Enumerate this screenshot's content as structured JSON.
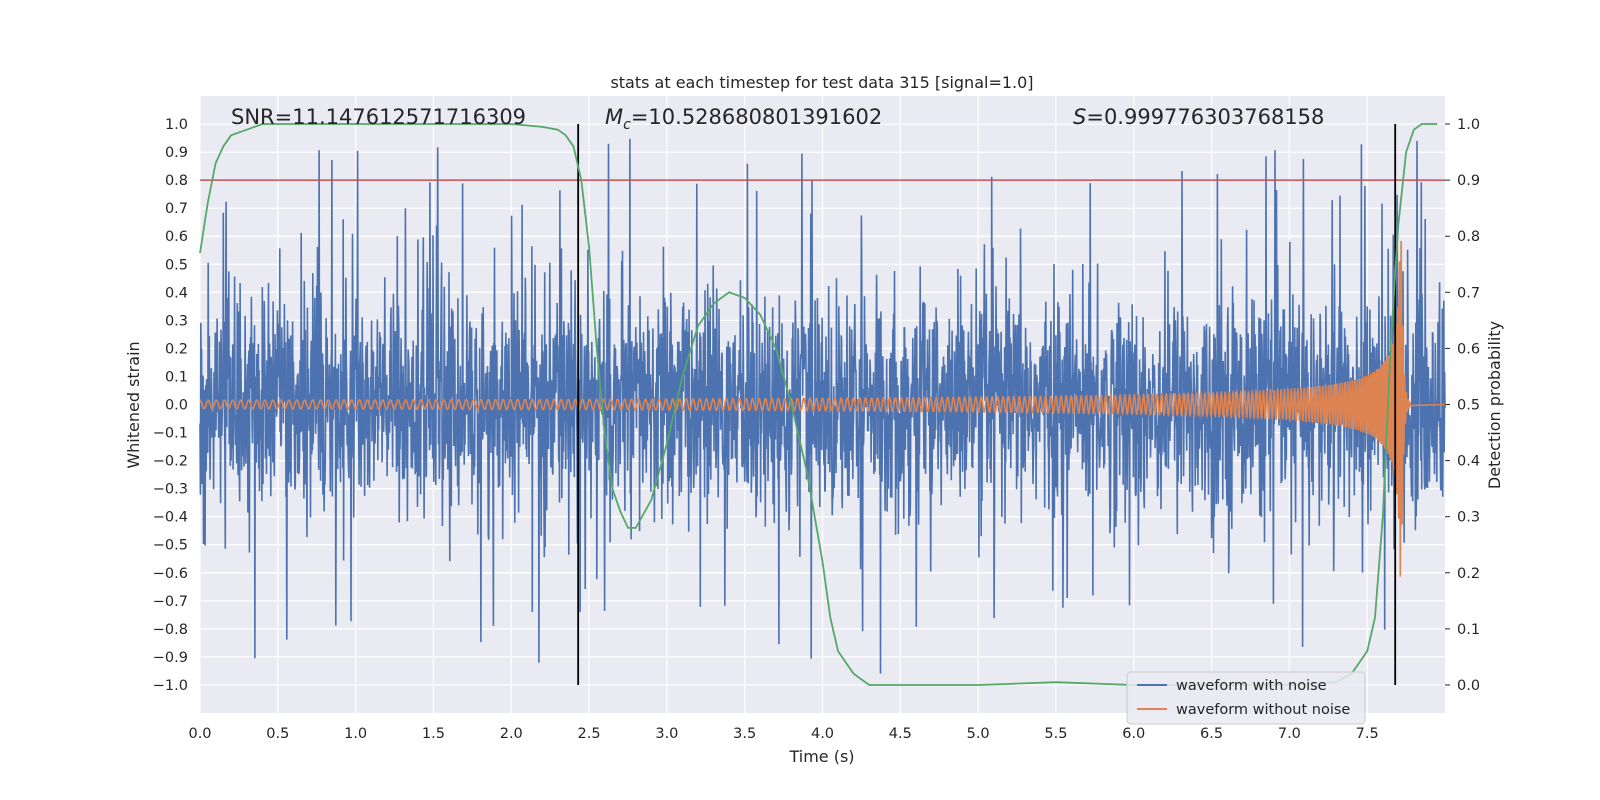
{
  "chart_data": {
    "type": "line",
    "title": "stats at each timestep for test data 315 [signal=1.0]",
    "xlabel": "Time (s)",
    "ylabel": "Whitened strain",
    "y2label": "Detection probability",
    "xlim": [
      0.0,
      8.0
    ],
    "ylim": [
      -1.1,
      1.1
    ],
    "y2lim": [
      -0.05,
      1.05
    ],
    "xticks": [
      "0.0",
      "0.5",
      "1.0",
      "1.5",
      "2.0",
      "2.5",
      "3.0",
      "3.5",
      "4.0",
      "4.5",
      "5.0",
      "5.5",
      "6.0",
      "6.5",
      "7.0",
      "7.5"
    ],
    "yticks": [
      "1.0",
      "0.9",
      "0.8",
      "0.7",
      "0.6",
      "0.5",
      "0.4",
      "0.3",
      "0.2",
      "0.1",
      "0.0",
      "−0.1",
      "−0.2",
      "−0.3",
      "−0.4",
      "−0.5",
      "−0.6",
      "−0.7",
      "−0.8",
      "−0.9",
      "−1.0"
    ],
    "y2ticks": [
      "1.0",
      "0.9",
      "0.8",
      "0.7",
      "0.6",
      "0.5",
      "0.4",
      "0.3",
      "0.2",
      "0.1",
      "0.0"
    ],
    "grid": true,
    "legend_position": "lower-right",
    "annotations": {
      "snr": "SNR=11.147612571716309",
      "mc_symbol": "M",
      "mc_sub": "c",
      "mc_value": "=10.528680801391602",
      "s_symbol": "S",
      "s_value": "=0.999776303768158"
    },
    "series": [
      {
        "name": "waveform with noise",
        "color": "#4c72b0",
        "axis": "left",
        "kind": "noise",
        "envelope": 0.55,
        "peak": 1.0
      },
      {
        "name": "waveform without noise",
        "color": "#dd8452",
        "axis": "left",
        "kind": "chirp",
        "start_amplitude": 0.015,
        "peak_time": 7.72,
        "peak_amplitude": 0.62,
        "end_time": 7.78
      },
      {
        "color": "#55a868",
        "axis": "right",
        "kind": "probability",
        "x": [
          0.0,
          0.05,
          0.1,
          0.15,
          0.2,
          0.3,
          0.4,
          0.5,
          0.8,
          1.2,
          1.6,
          2.0,
          2.2,
          2.3,
          2.35,
          2.4,
          2.45,
          2.5,
          2.55,
          2.6,
          2.65,
          2.7,
          2.75,
          2.8,
          2.9,
          3.0,
          3.1,
          3.2,
          3.3,
          3.4,
          3.5,
          3.6,
          3.7,
          3.8,
          3.9,
          4.0,
          4.05,
          4.1,
          4.2,
          4.3,
          4.5,
          5.0,
          5.5,
          6.0,
          6.5,
          7.0,
          7.3,
          7.4,
          7.5,
          7.55,
          7.6,
          7.65,
          7.7,
          7.75,
          7.8,
          7.85,
          7.9,
          7.95
        ],
        "y": [
          0.77,
          0.86,
          0.93,
          0.96,
          0.98,
          0.99,
          1.0,
          1.0,
          1.0,
          1.0,
          1.0,
          1.0,
          0.995,
          0.99,
          0.98,
          0.96,
          0.9,
          0.78,
          0.6,
          0.45,
          0.35,
          0.31,
          0.28,
          0.28,
          0.33,
          0.43,
          0.55,
          0.64,
          0.68,
          0.7,
          0.69,
          0.66,
          0.6,
          0.5,
          0.38,
          0.22,
          0.12,
          0.06,
          0.02,
          0.0,
          0.0,
          0.0,
          0.005,
          0.0,
          0.0,
          0.0,
          0.005,
          0.02,
          0.06,
          0.12,
          0.3,
          0.6,
          0.82,
          0.95,
          0.99,
          1.0,
          1.0,
          1.0
        ]
      }
    ],
    "threshold_line": {
      "color": "#c44e52",
      "axis": "right",
      "value": 0.9
    },
    "vertical_lines": [
      2.43,
      7.68
    ]
  }
}
